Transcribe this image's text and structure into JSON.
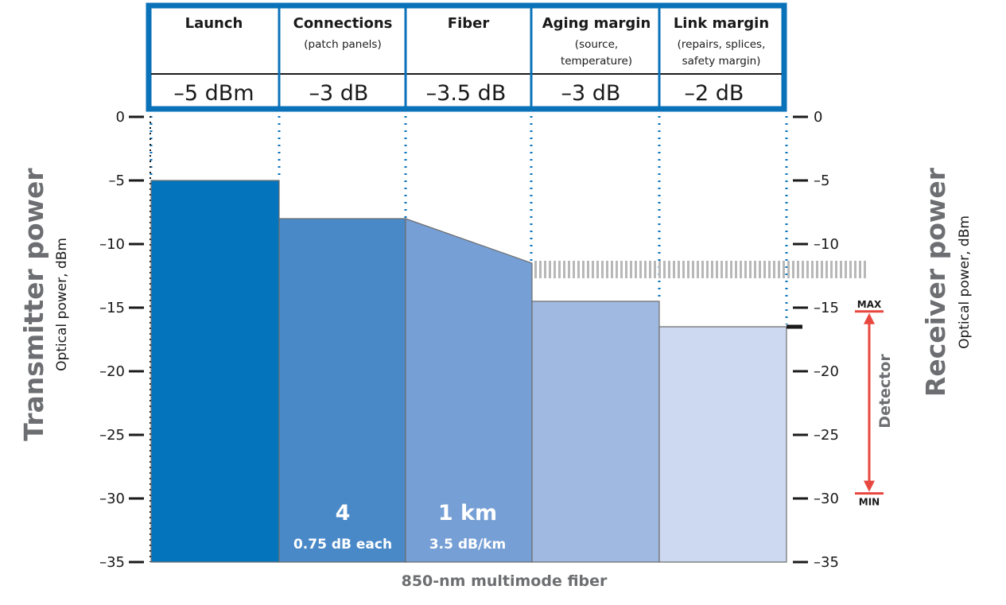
{
  "header": {
    "columns": [
      {
        "title": "Launch",
        "sub": [],
        "value": "–5 dBm"
      },
      {
        "title": "Connections",
        "sub": [
          "(patch panels)"
        ],
        "value": "–3 dB"
      },
      {
        "title": "Fiber",
        "sub": [],
        "value": "–3.5 dB"
      },
      {
        "title": "Aging margin",
        "sub": [
          "(source,",
          "temperature)"
        ],
        "value": "–3 dB"
      },
      {
        "title": "Link margin",
        "sub": [
          "(repairs, splices,",
          "safety margin)"
        ],
        "value": "–2 dB"
      }
    ]
  },
  "left_axis": {
    "title": "Transmitter power",
    "subtitle": "Optical power, dBm",
    "ticks": [
      "0",
      "–5",
      "–10",
      "–15",
      "–20",
      "–25",
      "–30",
      "–35"
    ]
  },
  "right_axis": {
    "title": "Receiver power",
    "subtitle": "Optical power, dBm",
    "ticks": [
      "0",
      "–5",
      "–10",
      "–15",
      "–20",
      "–25",
      "–30",
      "–35"
    ]
  },
  "bars": {
    "connections": {
      "count": "4",
      "detail": "0.75 dB each"
    },
    "fiber": {
      "length": "1 km",
      "detail": "3.5 dB/km"
    }
  },
  "x_label": "850-nm multimode fiber",
  "detector": {
    "label": "Detector",
    "max": "MAX",
    "min": "MIN"
  },
  "colors": {
    "frame": "#0a72b9",
    "launch": "#0474bd",
    "connections": "#4a89c8",
    "fiber": "#769fd5",
    "aging": "#a0b9e0",
    "link": "#cdd9f0",
    "detector_arrow": "#e8473f",
    "grey_text": "#6d6e71"
  },
  "chart_data": {
    "type": "bar",
    "title": "",
    "categories": [
      "Launch",
      "Connections",
      "Fiber",
      "Aging margin",
      "Link margin"
    ],
    "series": [
      {
        "name": "",
        "values": [
          -5,
          -8,
          -11.5,
          -14.5,
          -16.5
        ]
      }
    ],
    "fiber_start_level": -8,
    "ylim": [
      -35,
      0
    ],
    "receiver_sensitivity_level": -12,
    "detector_range": {
      "max": -15.3,
      "min": -29.6
    },
    "ylabel": "Optical power, dBm",
    "xlabel": "850-nm multimode fiber"
  }
}
